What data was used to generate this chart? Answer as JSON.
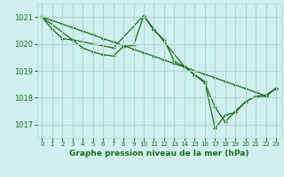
{
  "bg_color": "#cff0ee",
  "grid_color": "#b0d8cc",
  "line_color": "#1a6b1a",
  "marker": "+",
  "xlabel": "Graphe pression niveau de la mer (hPa)",
  "xlim": [
    -0.5,
    23.5
  ],
  "ylim": [
    1016.5,
    1021.5
  ],
  "yticks": [
    1017,
    1018,
    1019,
    1020,
    1021
  ],
  "xticks": [
    0,
    1,
    2,
    3,
    4,
    5,
    6,
    7,
    8,
    9,
    10,
    11,
    12,
    13,
    14,
    15,
    16,
    17,
    18,
    19,
    20,
    21,
    22,
    23
  ],
  "series": [
    {
      "x": [
        0,
        1,
        2,
        3,
        4,
        5,
        6,
        7,
        8,
        9,
        10,
        11,
        12,
        13,
        14,
        15,
        16,
        17,
        18,
        19,
        20,
        21,
        22,
        23
      ],
      "y": [
        1021.0,
        1020.55,
        1020.2,
        1020.15,
        1019.85,
        1019.7,
        1019.6,
        1019.55,
        1019.9,
        1019.95,
        1021.05,
        1020.5,
        1020.15,
        1019.35,
        1019.15,
        1018.85,
        1018.55,
        1017.65,
        1017.1,
        1017.5,
        1017.85,
        1018.05,
        1018.1,
        1018.35
      ]
    },
    {
      "x": [
        0,
        1,
        2,
        3,
        4,
        5,
        6,
        7,
        8,
        9,
        10,
        11,
        12,
        13,
        14,
        15,
        16,
        17,
        18,
        19,
        20,
        21,
        22,
        23
      ],
      "y": [
        1021.0,
        1020.87,
        1020.74,
        1020.6,
        1020.47,
        1020.34,
        1020.2,
        1020.07,
        1019.94,
        1019.8,
        1019.67,
        1019.54,
        1019.4,
        1019.27,
        1019.14,
        1019.0,
        1018.87,
        1018.74,
        1018.6,
        1018.47,
        1018.34,
        1018.2,
        1018.07,
        1018.35
      ]
    },
    {
      "x": [
        0,
        3,
        7,
        10,
        11,
        14,
        15,
        16,
        17,
        18,
        19,
        20,
        21,
        22,
        23
      ],
      "y": [
        1021.0,
        1020.15,
        1019.85,
        1021.05,
        1020.55,
        1019.15,
        1018.85,
        1018.6,
        1016.85,
        1017.35,
        1017.45,
        1017.85,
        1018.05,
        1018.05,
        1018.35
      ]
    }
  ]
}
